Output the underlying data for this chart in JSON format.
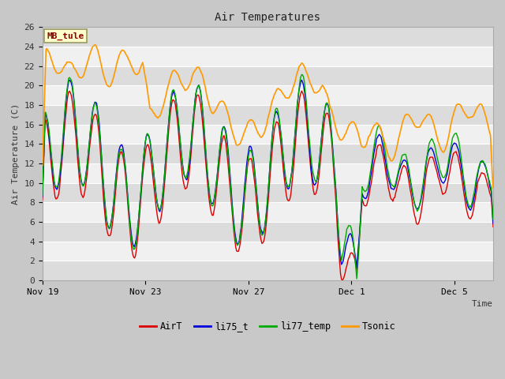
{
  "title": "Air Temperatures",
  "xlabel": "Time",
  "ylabel": "Air Temperature (C)",
  "annotation": "MB_tule",
  "ylim": [
    0,
    26
  ],
  "yticks": [
    0,
    2,
    4,
    6,
    8,
    10,
    12,
    14,
    16,
    18,
    20,
    22,
    24,
    26
  ],
  "xtick_positions": [
    0,
    4,
    8,
    12,
    16
  ],
  "xtick_labels": [
    "Nov 19",
    "Nov 23",
    "Nov 27",
    "Dec 1",
    "Dec 5"
  ],
  "xlim": [
    0,
    17.5
  ],
  "fig_bg": "#c8c8c8",
  "plot_bg": "#f0f0f0",
  "band_color_dark": "#dcdcdc",
  "band_color_light": "#f0f0f0",
  "line_colors": {
    "AirT": "#dd0000",
    "li75_t": "#0000dd",
    "li77_temp": "#00aa00",
    "Tsonic": "#ff9900"
  },
  "annotation_box_color": "#ffffcc",
  "annotation_text_color": "#880000",
  "annotation_border_color": "#999966"
}
